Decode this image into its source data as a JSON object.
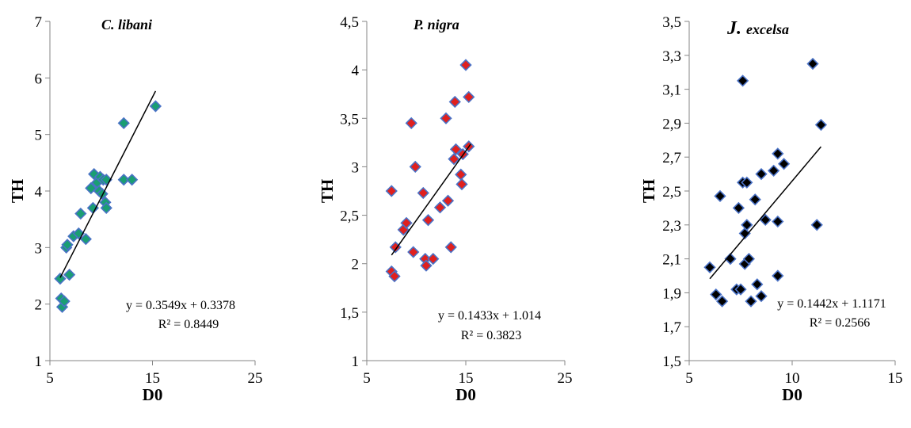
{
  "colors": {
    "c_libani_marker": "#1a9e73",
    "p_nigra_marker": "#e0201e",
    "j_excelsa_marker": "#000000",
    "marker_border": "#4a72c6",
    "trendline": "#000000"
  },
  "chart_data": [
    {
      "type": "scatter",
      "title_prefix": "",
      "title": "C. libani",
      "xlabel": "D0",
      "ylabel": "TH",
      "xlim": [
        5,
        25
      ],
      "ylim": [
        1,
        7
      ],
      "xticks": [
        "5",
        "15",
        "25"
      ],
      "xtick_values": [
        5,
        15,
        25
      ],
      "yticks": [
        "1",
        "2",
        "3",
        "4",
        "5",
        "6",
        "7"
      ],
      "ytick_values": [
        1,
        2,
        3,
        4,
        5,
        6,
        7
      ],
      "grid": false,
      "equation": "y = 0.3549x + 0.3378",
      "r_squared": "R² = 0.8449",
      "trendline": {
        "slope": 0.3549,
        "intercept": 0.3378,
        "x_range": [
          6.0,
          15.3
        ]
      },
      "points": [
        {
          "x": 6.0,
          "y": 2.45
        },
        {
          "x": 6.1,
          "y": 2.1
        },
        {
          "x": 6.2,
          "y": 1.95
        },
        {
          "x": 6.4,
          "y": 2.05
        },
        {
          "x": 6.6,
          "y": 3.0
        },
        {
          "x": 6.7,
          "y": 3.05
        },
        {
          "x": 6.9,
          "y": 2.52
        },
        {
          "x": 7.3,
          "y": 3.2
        },
        {
          "x": 7.8,
          "y": 3.25
        },
        {
          "x": 8.0,
          "y": 3.6
        },
        {
          "x": 8.5,
          "y": 3.15
        },
        {
          "x": 9.0,
          "y": 4.05
        },
        {
          "x": 9.2,
          "y": 3.7
        },
        {
          "x": 9.3,
          "y": 4.3
        },
        {
          "x": 9.6,
          "y": 4.15
        },
        {
          "x": 9.8,
          "y": 4.0
        },
        {
          "x": 9.9,
          "y": 4.25
        },
        {
          "x": 10.1,
          "y": 3.95
        },
        {
          "x": 10.2,
          "y": 4.2
        },
        {
          "x": 10.4,
          "y": 3.8
        },
        {
          "x": 10.5,
          "y": 4.2
        },
        {
          "x": 10.5,
          "y": 3.7
        },
        {
          "x": 12.2,
          "y": 5.2
        },
        {
          "x": 12.2,
          "y": 4.2
        },
        {
          "x": 13.0,
          "y": 4.2
        },
        {
          "x": 15.3,
          "y": 5.5
        }
      ]
    },
    {
      "type": "scatter",
      "title_prefix": "",
      "title": "P. nigra",
      "xlabel": "D0",
      "ylabel": "TH",
      "xlim": [
        5,
        25
      ],
      "ylim": [
        1,
        4.5
      ],
      "xticks": [
        "5",
        "15",
        "25"
      ],
      "xtick_values": [
        5,
        15,
        25
      ],
      "yticks": [
        "1",
        "1,5",
        "2",
        "2,5",
        "3",
        "3,5",
        "4",
        "4,5"
      ],
      "ytick_values": [
        1,
        1.5,
        2,
        2.5,
        3,
        3.5,
        4,
        4.5
      ],
      "grid": false,
      "equation": "y = 0.1433x + 1.014",
      "r_squared": "R² = 0.3823",
      "trendline": {
        "slope": 0.1433,
        "intercept": 1.014,
        "x_range": [
          7.5,
          15.5
        ]
      },
      "points": [
        {
          "x": 7.5,
          "y": 2.75
        },
        {
          "x": 7.5,
          "y": 1.92
        },
        {
          "x": 7.8,
          "y": 1.87
        },
        {
          "x": 7.9,
          "y": 2.17
        },
        {
          "x": 8.7,
          "y": 2.35
        },
        {
          "x": 9.0,
          "y": 2.42
        },
        {
          "x": 9.5,
          "y": 3.45
        },
        {
          "x": 9.7,
          "y": 2.12
        },
        {
          "x": 9.9,
          "y": 3.0
        },
        {
          "x": 10.7,
          "y": 2.73
        },
        {
          "x": 10.9,
          "y": 2.05
        },
        {
          "x": 11.0,
          "y": 1.98
        },
        {
          "x": 11.2,
          "y": 2.45
        },
        {
          "x": 11.7,
          "y": 2.05
        },
        {
          "x": 12.4,
          "y": 2.58
        },
        {
          "x": 13.0,
          "y": 3.5
        },
        {
          "x": 13.2,
          "y": 2.65
        },
        {
          "x": 13.5,
          "y": 2.17
        },
        {
          "x": 13.8,
          "y": 3.08
        },
        {
          "x": 13.9,
          "y": 3.67
        },
        {
          "x": 14.0,
          "y": 3.18
        },
        {
          "x": 14.5,
          "y": 2.92
        },
        {
          "x": 14.6,
          "y": 2.82
        },
        {
          "x": 14.7,
          "y": 3.13
        },
        {
          "x": 15.0,
          "y": 4.05
        },
        {
          "x": 15.3,
          "y": 3.72
        },
        {
          "x": 15.3,
          "y": 3.21
        }
      ]
    },
    {
      "type": "scatter",
      "title_prefix": "J.",
      "title": "excelsa",
      "xlabel": "D0",
      "ylabel": "TH",
      "xlim": [
        5,
        15
      ],
      "ylim": [
        1.5,
        3.5
      ],
      "xticks": [
        "5",
        "10",
        "15"
      ],
      "xtick_values": [
        5,
        10,
        15
      ],
      "yticks": [
        "1,5",
        "1,7",
        "1,9",
        "2,1",
        "2,3",
        "2,5",
        "2,7",
        "2,9",
        "3,1",
        "3,3",
        "3,5"
      ],
      "ytick_values": [
        1.5,
        1.7,
        1.9,
        2.1,
        2.3,
        2.5,
        2.7,
        2.9,
        3.1,
        3.3,
        3.5
      ],
      "grid": false,
      "equation": "y = 0.1442x + 1.1171",
      "r_squared": "R² = 0.2566",
      "trendline": {
        "slope": 0.1442,
        "intercept": 1.1171,
        "x_range": [
          6.0,
          11.4
        ]
      },
      "points": [
        {
          "x": 6.0,
          "y": 2.05
        },
        {
          "x": 6.3,
          "y": 1.89
        },
        {
          "x": 6.5,
          "y": 2.47
        },
        {
          "x": 6.6,
          "y": 1.85
        },
        {
          "x": 7.0,
          "y": 2.1
        },
        {
          "x": 7.3,
          "y": 1.92
        },
        {
          "x": 7.4,
          "y": 2.4
        },
        {
          "x": 7.5,
          "y": 1.92
        },
        {
          "x": 7.6,
          "y": 2.55
        },
        {
          "x": 7.6,
          "y": 3.15
        },
        {
          "x": 7.7,
          "y": 2.25
        },
        {
          "x": 7.7,
          "y": 2.07
        },
        {
          "x": 7.8,
          "y": 2.55
        },
        {
          "x": 7.8,
          "y": 2.3
        },
        {
          "x": 7.9,
          "y": 2.1
        },
        {
          "x": 8.0,
          "y": 1.85
        },
        {
          "x": 8.2,
          "y": 2.45
        },
        {
          "x": 8.3,
          "y": 1.95
        },
        {
          "x": 8.5,
          "y": 2.6
        },
        {
          "x": 8.5,
          "y": 1.88
        },
        {
          "x": 8.7,
          "y": 2.33
        },
        {
          "x": 9.1,
          "y": 2.62
        },
        {
          "x": 9.3,
          "y": 2.72
        },
        {
          "x": 9.3,
          "y": 2.32
        },
        {
          "x": 9.3,
          "y": 2.0
        },
        {
          "x": 9.6,
          "y": 2.66
        },
        {
          "x": 11.0,
          "y": 3.25
        },
        {
          "x": 11.2,
          "y": 2.3
        },
        {
          "x": 11.4,
          "y": 2.89
        }
      ]
    }
  ]
}
